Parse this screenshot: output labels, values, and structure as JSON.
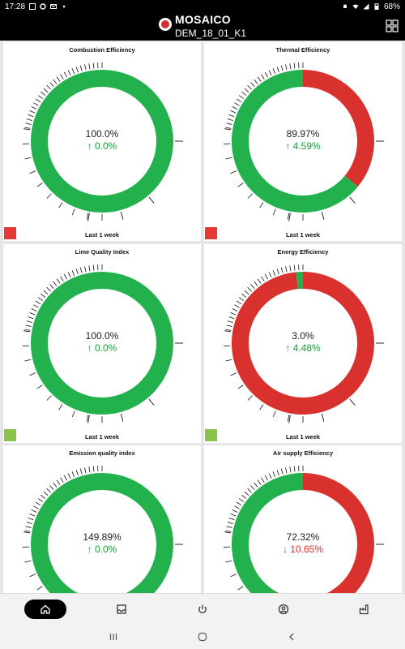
{
  "status": {
    "time": "17:28",
    "battery": "68%"
  },
  "header": {
    "title": "MOSAICO",
    "subtitle": "DEM_18_01_K1"
  },
  "colors": {
    "green": "#22b14c",
    "red": "#d9312e",
    "up": "#1e9e3e",
    "down": "#d9312e",
    "swatch_red": "#e53935",
    "swatch_green": "#8bc34a"
  },
  "cards": [
    {
      "title": "Combustion Efficiency",
      "value": "100.0%",
      "delta": "↑ 0.0%",
      "trend": "up",
      "green_pct": 100,
      "period": "Last 1 week",
      "swatch": "red"
    },
    {
      "title": "Thermal Efficiency",
      "value": "89.97%",
      "delta": "↑ 4.59%",
      "trend": "up",
      "green_pct": 64,
      "period": "Last 1 week",
      "swatch": "red"
    },
    {
      "title": "Lime Quality Index",
      "value": "100.0%",
      "delta": "↑ 0.0%",
      "trend": "up",
      "green_pct": 100,
      "period": "Last 1 week",
      "swatch": "green"
    },
    {
      "title": "Energy Efficiency",
      "value": "3.0%",
      "delta": "↑ 4.48%",
      "trend": "up",
      "green_pct": 1.5,
      "period": "Last 1 week",
      "swatch": "green"
    },
    {
      "title": "Emission quality index",
      "value": "149.89%",
      "delta": "↑ 0.0%",
      "trend": "up",
      "green_pct": 100,
      "period": "",
      "swatch": ""
    },
    {
      "title": "Air supply Efficiency",
      "value": "72.32%",
      "delta": "↓ 10.65%",
      "trend": "down",
      "green_pct": 42,
      "period": "",
      "swatch": ""
    }
  ],
  "nav": [
    {
      "name": "home-icon",
      "active": true
    },
    {
      "name": "inbox-icon",
      "active": false
    },
    {
      "name": "power-icon",
      "active": false
    },
    {
      "name": "account-icon",
      "active": false
    },
    {
      "name": "factory-icon",
      "active": false
    }
  ]
}
